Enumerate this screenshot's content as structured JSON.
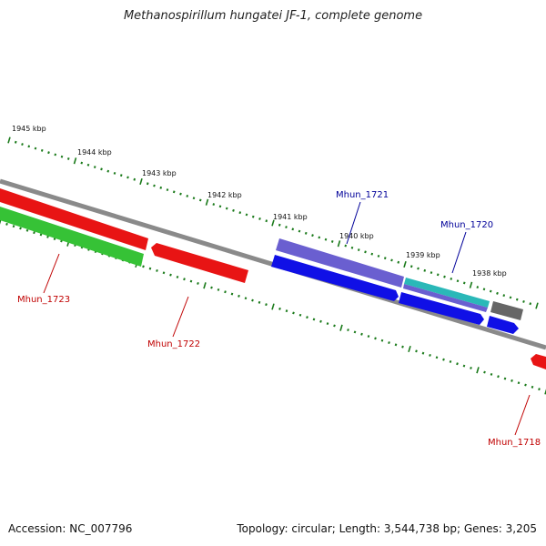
{
  "title": "Methanospirillum hungatei JF-1, complete genome",
  "footer": {
    "accession": "Accession: NC_007796",
    "summary": "Topology: circular; Length: 3,544,738 bp; Genes: 3,205"
  },
  "colors": {
    "backbone": "#8a8a8a",
    "tick": "#1a7a1a",
    "red": "#e81414",
    "green": "#36c236",
    "blue": "#1010e6",
    "purple": "#6a5fd0",
    "teal": "#2ab8b8",
    "gray": "#666666",
    "label_red": "#c00000",
    "label_blue": "#000099"
  },
  "scale_labels": [
    "1945 kbp",
    "1944 kbp",
    "1943 kbp",
    "1942 kbp",
    "1941 kbp",
    "1940 kbp",
    "1939 kbp",
    "1938 kbp"
  ],
  "genes": [
    {
      "name": "Mhun_1723",
      "color": "red"
    },
    {
      "name": "Mhun_1722",
      "color": "red"
    },
    {
      "name": "Mhun_1721",
      "color": "blue"
    },
    {
      "name": "Mhun_1720",
      "color": "blue"
    },
    {
      "name": "Mhun_1718",
      "color": "red"
    }
  ]
}
